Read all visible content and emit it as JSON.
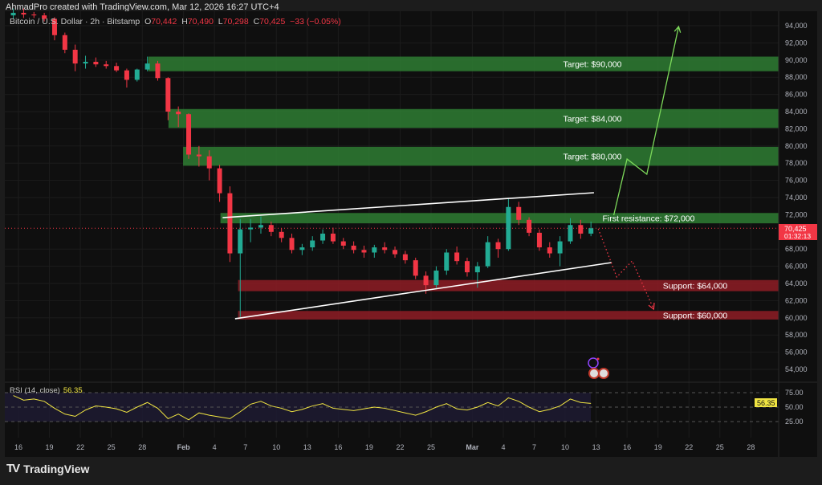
{
  "header": {
    "credit": "AhmadPro created with TradingView.com, Mar 12, 2026 16:27 UTC+4"
  },
  "legend": {
    "symbol": "Bitcoin / U.S. Dollar · 2h · Bitstamp",
    "o_label": "O",
    "o": "70,442",
    "h_label": "H",
    "h": "70,490",
    "l_label": "L",
    "l": "70,298",
    "c_label": "C",
    "c": "70,425",
    "change": "−33 (−0.05%)"
  },
  "last_price": {
    "price": "70,425",
    "countdown": "01:32:13",
    "color": "#f23645"
  },
  "rsi": {
    "label": "RSI (14, close)",
    "value": "56.35",
    "color": "#f0e442",
    "axis_ticks": [
      "75.00",
      "50.00",
      "25.00"
    ],
    "upper": 75,
    "lower": 25
  },
  "footer": {
    "logo": "TV",
    "brand": "TradingView"
  },
  "colors": {
    "up": "#22ab94",
    "down": "#f23645",
    "target_zone": "#2e7d32",
    "support_zone": "#8e1c24",
    "bull_path": "#7cd85a",
    "bear_path": "#f23645"
  },
  "chart_data": {
    "type": "candlestick",
    "title": "Bitcoin / U.S. Dollar · 2h · Bitstamp",
    "ylim": [
      52000,
      96000
    ],
    "grid": true,
    "y_ticks": [
      "94,000",
      "92,000",
      "90,000",
      "88,000",
      "86,000",
      "84,000",
      "82,000",
      "80,000",
      "78,000",
      "76,000",
      "74,000",
      "72,000",
      "68,000",
      "66,000",
      "64,000",
      "62,000",
      "60,000",
      "58,000",
      "56,000",
      "54,000"
    ],
    "x_ticks": [
      {
        "label": "16",
        "date": "2026-01-16"
      },
      {
        "label": "19",
        "date": "2026-01-19"
      },
      {
        "label": "22",
        "date": "2026-01-22"
      },
      {
        "label": "25",
        "date": "2026-01-25"
      },
      {
        "label": "28",
        "date": "2026-01-28"
      },
      {
        "label": "Feb",
        "date": "2026-02-01"
      },
      {
        "label": "4",
        "date": "2026-02-04"
      },
      {
        "label": "7",
        "date": "2026-02-07"
      },
      {
        "label": "10",
        "date": "2026-02-10"
      },
      {
        "label": "13",
        "date": "2026-02-13"
      },
      {
        "label": "16",
        "date": "2026-02-16"
      },
      {
        "label": "19",
        "date": "2026-02-19"
      },
      {
        "label": "22",
        "date": "2026-02-22"
      },
      {
        "label": "25",
        "date": "2026-02-25"
      },
      {
        "label": "Mar",
        "date": "2026-03-01"
      },
      {
        "label": "4",
        "date": "2026-03-04"
      },
      {
        "label": "7",
        "date": "2026-03-07"
      },
      {
        "label": "10",
        "date": "2026-03-10"
      },
      {
        "label": "13",
        "date": "2026-03-13"
      },
      {
        "label": "16",
        "date": "2026-03-16"
      },
      {
        "label": "19",
        "date": "2026-03-19"
      },
      {
        "label": "22",
        "date": "2026-03-22"
      },
      {
        "label": "25",
        "date": "2026-03-25"
      },
      {
        "label": "28",
        "date": "2026-03-28"
      }
    ],
    "ohlc_start": "2026-01-15",
    "ohlc": [
      [
        95200,
        96000,
        94800,
        95500
      ],
      [
        95500,
        96000,
        94900,
        95300
      ],
      [
        95300,
        95600,
        94900,
        95200
      ],
      [
        95200,
        95500,
        94500,
        94800
      ],
      [
        94800,
        95000,
        92300,
        92900
      ],
      [
        92900,
        93200,
        90800,
        91200
      ],
      [
        91200,
        91800,
        88700,
        89600
      ],
      [
        89600,
        90500,
        89000,
        89800
      ],
      [
        89800,
        90300,
        89200,
        89500
      ],
      [
        89500,
        89900,
        89000,
        89300
      ],
      [
        89300,
        89700,
        88600,
        88800
      ],
      [
        88800,
        89000,
        86800,
        87700
      ],
      [
        87700,
        89000,
        87500,
        88900
      ],
      [
        88900,
        90400,
        88700,
        89600
      ],
      [
        89600,
        89900,
        87600,
        87900
      ],
      [
        87900,
        88000,
        83000,
        84000
      ],
      [
        84000,
        84600,
        82200,
        83700
      ],
      [
        83700,
        83800,
        78500,
        79000
      ],
      [
        79000,
        80000,
        77600,
        78800
      ],
      [
        78800,
        79500,
        76000,
        77400
      ],
      [
        77400,
        77800,
        73500,
        74500
      ],
      [
        74500,
        75300,
        66500,
        67500
      ],
      [
        67500,
        71500,
        60100,
        70300
      ],
      [
        70300,
        71500,
        68800,
        70500
      ],
      [
        70500,
        71800,
        69800,
        70800
      ],
      [
        70800,
        71200,
        69500,
        70000
      ],
      [
        70000,
        70400,
        68800,
        69300
      ],
      [
        69300,
        69800,
        67500,
        67900
      ],
      [
        67900,
        68600,
        67300,
        68200
      ],
      [
        68200,
        69500,
        67800,
        69000
      ],
      [
        69000,
        70300,
        68600,
        69800
      ],
      [
        69800,
        70500,
        68600,
        68900
      ],
      [
        68900,
        69300,
        68000,
        68400
      ],
      [
        68400,
        68900,
        67500,
        67900
      ],
      [
        67900,
        68400,
        67000,
        67600
      ],
      [
        67600,
        68500,
        67000,
        68200
      ],
      [
        68200,
        68800,
        67500,
        67900
      ],
      [
        67900,
        68300,
        67000,
        67400
      ],
      [
        67400,
        67800,
        66300,
        66700
      ],
      [
        66700,
        67000,
        64500,
        64900
      ],
      [
        64900,
        65400,
        62800,
        63800
      ],
      [
        63800,
        66000,
        63500,
        65500
      ],
      [
        65500,
        68000,
        65000,
        67600
      ],
      [
        67600,
        68300,
        66200,
        66600
      ],
      [
        66600,
        67000,
        64800,
        65300
      ],
      [
        65300,
        66500,
        63500,
        66000
      ],
      [
        66000,
        69500,
        65800,
        68800
      ],
      [
        68800,
        69200,
        67000,
        68000
      ],
      [
        68000,
        73900,
        67800,
        72900
      ],
      [
        72900,
        73500,
        70800,
        71400
      ],
      [
        71400,
        71700,
        69500,
        69900
      ],
      [
        69900,
        70300,
        67800,
        68200
      ],
      [
        68200,
        68800,
        67000,
        67500
      ],
      [
        67500,
        69500,
        66000,
        68900
      ],
      [
        68900,
        71600,
        68600,
        70800
      ],
      [
        70800,
        71400,
        69200,
        69800
      ],
      [
        69800,
        71200,
        69500,
        70425
      ]
    ],
    "rsi_values": [
      70,
      62,
      64,
      60,
      48,
      38,
      34,
      45,
      52,
      50,
      47,
      41,
      50,
      58,
      48,
      30,
      38,
      28,
      40,
      36,
      33,
      30,
      42,
      55,
      60,
      52,
      48,
      42,
      46,
      52,
      56,
      48,
      46,
      44,
      47,
      50,
      48,
      44,
      40,
      36,
      42,
      50,
      56,
      47,
      45,
      50,
      58,
      52,
      66,
      60,
      50,
      42,
      46,
      52,
      64,
      58,
      56.35
    ],
    "zones": [
      {
        "label": "Target: $90,000",
        "low": 88700,
        "high": 90400,
        "start": "2026-01-28T14:00",
        "kind": "target"
      },
      {
        "label": "Target: $84,000",
        "low": 82100,
        "high": 84300,
        "start": "2026-01-30T13:00",
        "kind": "target"
      },
      {
        "label": "Target: $80,000",
        "low": 77700,
        "high": 79900,
        "start": "2026-01-31T23:00",
        "kind": "target"
      },
      {
        "label": "First resistance: $72,000",
        "low": 71000,
        "high": 72200,
        "start": "2026-02-04T14:00",
        "kind": "target"
      },
      {
        "label": "Support: $64,000",
        "low": 63100,
        "high": 64400,
        "start": "2026-02-06T07:00",
        "kind": "support"
      },
      {
        "label": "Support: $60,000",
        "low": 59800,
        "high": 60800,
        "start": "2026-02-06T07:00",
        "kind": "support"
      }
    ],
    "trendlines": [
      {
        "from": [
          "2026-02-04T19:00",
          71660
        ],
        "to": [
          "2026-03-12T19:00",
          74560
        ]
      },
      {
        "from": [
          "2026-02-06T00:00",
          59890
        ],
        "to": [
          "2026-03-14T12:00",
          66430
        ]
      }
    ],
    "projections": [
      {
        "kind": "bull",
        "points": [
          [
            "2026-03-14T17:00",
            71940
          ],
          [
            "2026-03-16T00:00",
            78480
          ],
          [
            "2026-03-17T22:00",
            76710
          ],
          [
            "2026-03-21T00:00",
            93900
          ]
        ]
      },
      {
        "kind": "bear",
        "points": [
          [
            "2026-03-13T05:00",
            70360
          ],
          [
            "2026-03-15T00:00",
            64750
          ],
          [
            "2026-03-16T12:00",
            66620
          ],
          [
            "2026-03-18T14:00",
            61010
          ]
        ]
      }
    ]
  }
}
